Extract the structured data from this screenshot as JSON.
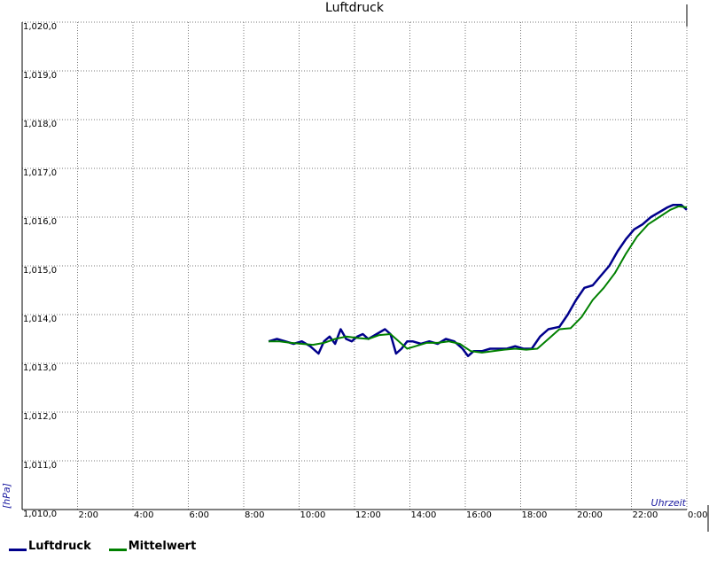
{
  "chart_data": {
    "type": "line",
    "title": "Luftdruck",
    "ylabel": "[hPa]",
    "xlabel": "Uhrzeit",
    "ylim": [
      1010.0,
      1020.0
    ],
    "xlim": [
      0,
      24
    ],
    "y_ticks": [
      {
        "value": 1010.0,
        "label": "1,010,0"
      },
      {
        "value": 1011.0,
        "label": "1,011,0"
      },
      {
        "value": 1012.0,
        "label": "1,012,0"
      },
      {
        "value": 1013.0,
        "label": "1,013,0"
      },
      {
        "value": 1014.0,
        "label": "1,014,0"
      },
      {
        "value": 1015.0,
        "label": "1,015,0"
      },
      {
        "value": 1016.0,
        "label": "1,016,0"
      },
      {
        "value": 1017.0,
        "label": "1,017,0"
      },
      {
        "value": 1018.0,
        "label": "1,018,0"
      },
      {
        "value": 1019.0,
        "label": "1,019,0"
      },
      {
        "value": 1020.0,
        "label": "1,020,0"
      }
    ],
    "x_ticks": [
      {
        "value": 2,
        "label": "2:00"
      },
      {
        "value": 4,
        "label": "4:00"
      },
      {
        "value": 6,
        "label": "6:00"
      },
      {
        "value": 8,
        "label": "8:00"
      },
      {
        "value": 10,
        "label": "10:00"
      },
      {
        "value": 12,
        "label": "12:00"
      },
      {
        "value": 14,
        "label": "14:00"
      },
      {
        "value": 16,
        "label": "16:00"
      },
      {
        "value": 18,
        "label": "18:00"
      },
      {
        "value": 20,
        "label": "20:00"
      },
      {
        "value": 22,
        "label": "22:00"
      },
      {
        "value": 24,
        "label": "0:00"
      }
    ],
    "grid": true,
    "legend_position": "bottom-left",
    "series": [
      {
        "name": "Luftdruck",
        "color": "#00008b",
        "x": [
          8.9,
          9.2,
          9.5,
          9.8,
          10.1,
          10.4,
          10.7,
          10.9,
          11.1,
          11.3,
          11.5,
          11.7,
          11.9,
          12.1,
          12.3,
          12.5,
          12.8,
          13.1,
          13.3,
          13.5,
          13.7,
          13.9,
          14.1,
          14.4,
          14.7,
          15.0,
          15.3,
          15.6,
          15.9,
          16.1,
          16.3,
          16.6,
          16.9,
          17.2,
          17.5,
          17.8,
          18.1,
          18.4,
          18.7,
          19.0,
          19.4,
          19.7,
          20.0,
          20.3,
          20.6,
          20.9,
          21.2,
          21.5,
          21.8,
          22.1,
          22.4,
          22.7,
          23.0,
          23.3,
          23.5,
          23.8,
          24.0
        ],
        "y": [
          1013.45,
          1013.5,
          1013.45,
          1013.4,
          1013.45,
          1013.35,
          1013.2,
          1013.45,
          1013.55,
          1013.4,
          1013.7,
          1013.5,
          1013.45,
          1013.55,
          1013.6,
          1013.5,
          1013.6,
          1013.7,
          1013.6,
          1013.2,
          1013.3,
          1013.45,
          1013.45,
          1013.4,
          1013.45,
          1013.4,
          1013.5,
          1013.45,
          1013.3,
          1013.15,
          1013.25,
          1013.25,
          1013.3,
          1013.3,
          1013.3,
          1013.35,
          1013.3,
          1013.3,
          1013.55,
          1013.7,
          1013.75,
          1014.0,
          1014.3,
          1014.55,
          1014.6,
          1014.8,
          1015.0,
          1015.3,
          1015.55,
          1015.75,
          1015.85,
          1016.0,
          1016.1,
          1016.2,
          1016.25,
          1016.25,
          1016.15
        ]
      },
      {
        "name": "Mittelwert",
        "color": "#008000",
        "x": [
          8.9,
          9.3,
          9.7,
          10.1,
          10.5,
          10.9,
          11.3,
          11.7,
          12.1,
          12.5,
          12.9,
          13.3,
          13.6,
          13.9,
          14.2,
          14.6,
          15.0,
          15.4,
          15.8,
          16.2,
          16.6,
          17.0,
          17.4,
          17.8,
          18.2,
          18.6,
          19.0,
          19.4,
          19.8,
          20.2,
          20.6,
          21.0,
          21.4,
          21.8,
          22.2,
          22.6,
          23.0,
          23.4,
          23.7,
          24.0
        ],
        "y": [
          1013.45,
          1013.45,
          1013.42,
          1013.4,
          1013.38,
          1013.42,
          1013.5,
          1013.55,
          1013.52,
          1013.5,
          1013.58,
          1013.6,
          1013.45,
          1013.3,
          1013.35,
          1013.42,
          1013.42,
          1013.45,
          1013.4,
          1013.25,
          1013.22,
          1013.25,
          1013.28,
          1013.3,
          1013.28,
          1013.3,
          1013.5,
          1013.7,
          1013.72,
          1013.95,
          1014.3,
          1014.55,
          1014.85,
          1015.25,
          1015.6,
          1015.85,
          1016.0,
          1016.15,
          1016.22,
          1016.2
        ]
      }
    ]
  }
}
